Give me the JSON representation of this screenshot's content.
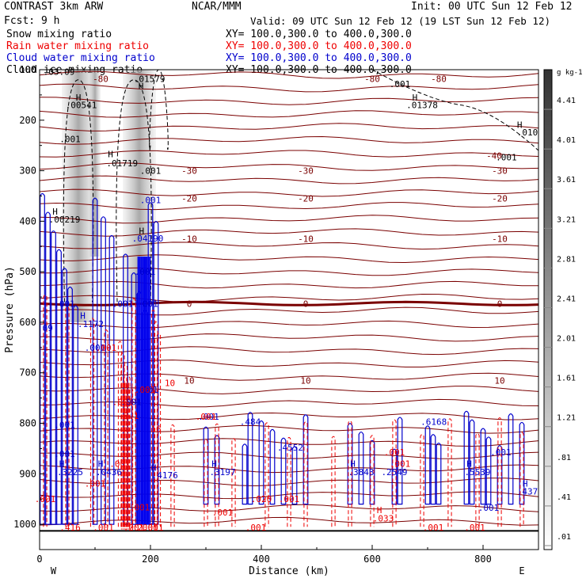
{
  "header": {
    "left_line1": "CONTRAST  3km ARW",
    "left_line2": "Fcst:    9 h",
    "center_line1": "NCAR/MMM",
    "init": "Init: 00 UTC Sun 12 Feb 12",
    "valid": "Valid: 09 UTC Sun 12 Feb 12 (19 LST Sun 12 Feb 12)"
  },
  "fields": [
    {
      "name": "Snow mixing ratio",
      "xy": "XY= 100.0,300.0 to 400.0,300.0",
      "color": "#000000"
    },
    {
      "name": "Rain water mixing ratio",
      "xy": "XY= 100.0,300.0 to 400.0,300.0",
      "color": "#ee0000"
    },
    {
      "name": "Cloud water mixing ratio",
      "xy": "XY= 100.0,300.0 to 400.0,300.0",
      "color": "#0000cc"
    },
    {
      "name": "Cloud ice mixing ratio",
      "xy": "XY= 100.0,300.0 to 400.0,300.0",
      "color": "#000000"
    }
  ],
  "chart_data": {
    "type": "contour",
    "xlabel": "Distance (km)",
    "ylabel": "Pressure (hPa)",
    "xlim": [
      0,
      900
    ],
    "ylim": [
      1050,
      100
    ],
    "x_ticks": [
      "0",
      "200",
      "400",
      "600",
      "800"
    ],
    "x_tick_values": [
      0,
      200,
      400,
      600,
      800
    ],
    "y_ticks": [
      "100",
      "200",
      "300",
      "400",
      "500",
      "600",
      "700",
      "800",
      "900",
      "1000"
    ],
    "y_tick_values": [
      100,
      200,
      300,
      400,
      500,
      600,
      700,
      800,
      900,
      1000
    ],
    "end_labels": {
      "west": "W",
      "east": "E"
    },
    "colorbar": {
      "unit": "g kg-1",
      "labels": [
        "4.41",
        "4.01",
        "3.61",
        "3.21",
        "2.81",
        "2.41",
        "2.01",
        "1.61",
        "1.21",
        ".81",
        ".41",
        ".01"
      ]
    },
    "temperature_contours": [
      {
        "label": "-30",
        "p": 300
      },
      {
        "label": "-20",
        "p": 355
      },
      {
        "label": "-10",
        "p": 435
      },
      {
        "label": "0",
        "p": 563
      },
      {
        "label": "10",
        "p": 715
      }
    ],
    "cloud_labels": [
      {
        "text": "H",
        "x": 70,
        "p": 155,
        "color": "#000"
      },
      {
        "text": ".00541",
        "x": 75,
        "p": 170,
        "color": "#000"
      },
      {
        "text": ".001",
        "x": 55,
        "p": 237,
        "color": "#000"
      },
      {
        "text": "H",
        "x": 128,
        "p": 267,
        "color": "#000"
      },
      {
        "text": ".01719",
        "x": 149,
        "p": 285,
        "color": "#000"
      },
      {
        "text": ".001",
        "x": 200,
        "p": 300,
        "color": "#000"
      },
      {
        "text": "H",
        "x": 28,
        "p": 381,
        "color": "#000"
      },
      {
        "text": ".00219",
        "x": 45,
        "p": 396,
        "color": "#000"
      },
      {
        "text": ".001",
        "x": 200,
        "p": 358,
        "color": "#0000cc"
      },
      {
        "text": "H",
        "x": 184,
        "p": 419,
        "color": "#000"
      },
      {
        "text": ".04190",
        "x": 195,
        "p": 434,
        "color": "#0000cc"
      },
      {
        "text": "H",
        "x": 78,
        "p": 587,
        "color": "#0000cc"
      },
      {
        "text": ".1172",
        "x": 92,
        "p": 603,
        "color": "#0000cc"
      },
      {
        "text": "H",
        "x": 183,
        "p": 132,
        "color": "#000"
      },
      {
        "text": ".01579",
        "x": 198,
        "p": 118,
        "color": "#000"
      },
      {
        "text": ".03.09",
        "x": 35,
        "p": 104,
        "color": "#000"
      },
      {
        "text": ".001",
        "x": 650,
        "p": 128,
        "color": "#000"
      },
      {
        "text": "H",
        "x": 677,
        "p": 155,
        "color": "#000"
      },
      {
        "text": ".01378",
        "x": 690,
        "p": 170,
        "color": "#000"
      },
      {
        "text": "H",
        "x": 866,
        "p": 209,
        "color": "#000"
      },
      {
        "text": ".010",
        "x": 880,
        "p": 224,
        "color": "#000"
      },
      {
        "text": ".001",
        "x": 842,
        "p": 273,
        "color": "#000"
      },
      {
        "text": "H",
        "x": 206,
        "p": 888,
        "color": "#0000cc"
      },
      {
        "text": ".4176",
        "x": 226,
        "p": 903,
        "color": "#0000cc"
      },
      {
        "text": "H",
        "x": 315,
        "p": 880,
        "color": "#0000cc"
      },
      {
        "text": ".3197",
        "x": 330,
        "p": 896,
        "color": "#0000cc"
      },
      {
        "text": ".484",
        "x": 380,
        "p": 797,
        "color": "#0000cc"
      },
      {
        "text": ".4552",
        "x": 452,
        "p": 848,
        "color": "#0000cc"
      },
      {
        "text": "H",
        "x": 565,
        "p": 880,
        "color": "#0000cc"
      },
      {
        "text": ".3843",
        "x": 580,
        "p": 896,
        "color": "#0000cc"
      },
      {
        "text": ".2549",
        "x": 640,
        "p": 896,
        "color": "#0000cc"
      },
      {
        "text": ".6168",
        "x": 711,
        "p": 797,
        "color": "#0000cc"
      },
      {
        "text": "H",
        "x": 775,
        "p": 880,
        "color": "#0000cc"
      },
      {
        "text": ".5539",
        "x": 790,
        "p": 896,
        "color": "#0000cc"
      },
      {
        "text": "H",
        "x": 876,
        "p": 919,
        "color": "#0000cc"
      },
      {
        "text": ".437",
        "x": 880,
        "p": 935,
        "color": "#0000cc"
      },
      {
        "text": ".001",
        "x": 832,
        "p": 857,
        "color": "#0000cc"
      },
      {
        "text": ".001",
        "x": 810,
        "p": 967,
        "color": "#0000cc"
      },
      {
        "text": "H",
        "x": 110,
        "p": 880,
        "color": "#0000cc"
      },
      {
        "text": ".0436",
        "x": 125,
        "p": 896,
        "color": "#0000cc"
      },
      {
        "text": "H",
        "x": 40,
        "p": 880,
        "color": "#0000cc"
      },
      {
        "text": ".3225",
        "x": 55,
        "p": 896,
        "color": "#0000cc"
      },
      {
        "text": ".001",
        "x": 45,
        "p": 563,
        "color": "#0000cc"
      },
      {
        "text": ".001",
        "x": 150,
        "p": 563,
        "color": "#0000cc"
      },
      {
        "text": ".001",
        "x": 195,
        "p": 563,
        "color": "#0000cc"
      },
      {
        "text": ".001",
        "x": 190,
        "p": 500,
        "color": "#0000cc"
      },
      {
        "text": ".001",
        "x": 195,
        "p": 733,
        "color": "#0000cc"
      },
      {
        "text": ".001",
        "x": 165,
        "p": 758,
        "color": "#0000cc"
      },
      {
        "text": ".001",
        "x": 305,
        "p": 787,
        "color": "#0000cc"
      },
      {
        "text": ".001",
        "x": 45,
        "p": 803,
        "color": "#0000cc"
      },
      {
        "text": ".09",
        "x": 10,
        "p": 611,
        "color": "#0000cc"
      },
      {
        "text": ".001",
        "x": 100,
        "p": 650,
        "color": "#0000cc"
      },
      {
        "text": "16",
        "x": 210,
        "p": 811,
        "color": "#ee0000"
      },
      {
        "text": ".001",
        "x": 300,
        "p": 787,
        "color": "#ee0000"
      },
      {
        "text": ".020",
        "x": 400,
        "p": 950,
        "color": "#ee0000"
      },
      {
        "text": ".001",
        "x": 330,
        "p": 976,
        "color": "#ee0000"
      },
      {
        "text": ".001",
        "x": 390,
        "p": 1006,
        "color": "#ee0000"
      },
      {
        "text": ".001",
        "x": 450,
        "p": 950,
        "color": "#ee0000"
      },
      {
        "text": ".001",
        "x": 640,
        "p": 857,
        "color": "#ee0000"
      },
      {
        "text": ".001",
        "x": 650,
        "p": 880,
        "color": "#ee0000"
      },
      {
        "text": ".001",
        "x": 10,
        "p": 950,
        "color": "#ee0000"
      },
      {
        "text": "H",
        "x": 613,
        "p": 972,
        "color": "#ee0000"
      },
      {
        "text": ".033",
        "x": 620,
        "p": 988,
        "color": "#ee0000"
      },
      {
        "text": ".001",
        "x": 115,
        "p": 1006,
        "color": "#ee0000"
      },
      {
        "text": ".001",
        "x": 170,
        "p": 1006,
        "color": "#ee0000"
      },
      {
        "text": ".001",
        "x": 195,
        "p": 1006,
        "color": "#ee0000"
      },
      {
        "text": ".001",
        "x": 710,
        "p": 1006,
        "color": "#ee0000"
      },
      {
        "text": ".001",
        "x": 785,
        "p": 1006,
        "color": "#ee0000"
      },
      {
        "text": ".416",
        "x": 55,
        "p": 1006,
        "color": "#ee0000"
      },
      {
        "text": "2",
        "x": 165,
        "p": 1006,
        "color": "#ee0000"
      },
      {
        "text": ".001",
        "x": 180,
        "p": 966,
        "color": "#ee0000"
      },
      {
        "text": ".001",
        "x": 145,
        "p": 880,
        "color": "#ee0000"
      },
      {
        "text": ".001",
        "x": 100,
        "p": 919,
        "color": "#ee0000"
      },
      {
        "text": ".001",
        "x": 120,
        "p": 650,
        "color": "#ee0000"
      },
      {
        "text": ".001",
        "x": 150,
        "p": 758,
        "color": "#ee0000"
      },
      {
        "text": ".001",
        "x": 190,
        "p": 733,
        "color": "#ee0000"
      },
      {
        "text": "3.1",
        "x": 165,
        "p": 785,
        "color": "#ee0000"
      },
      {
        "text": "10",
        "x": 235,
        "p": 720,
        "color": "#ee0000"
      },
      {
        "text": "2.001",
        "x": 200,
        "p": 1006,
        "color": "#ee0000"
      },
      {
        "text": ".001",
        "x": 45,
        "p": 860,
        "color": "#0000cc"
      }
    ]
  }
}
